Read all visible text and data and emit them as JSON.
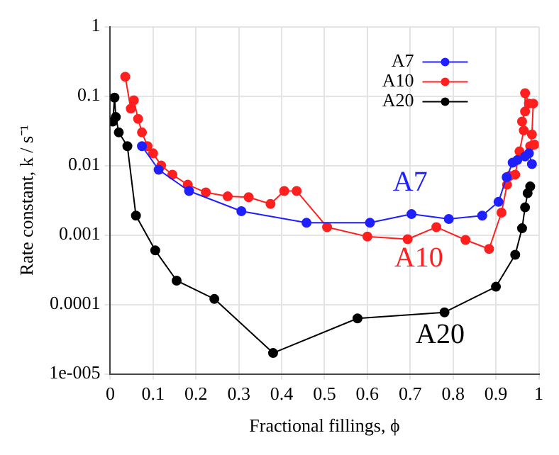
{
  "chart_data": {
    "type": "line",
    "xlabel": "Fractional fillings, ϕ",
    "ylabel": "Rate constant, k / s⁻¹",
    "log": "y",
    "grid": true,
    "legend": "top right",
    "marker": "circle",
    "line_style": "solid",
    "xlim": [
      0,
      1
    ],
    "xticks": [
      0,
      0.1,
      0.2,
      0.3,
      0.4,
      0.5,
      0.6,
      0.7,
      0.8,
      0.9,
      1
    ],
    "ylim": [
      1e-05,
      1
    ],
    "yticks": [
      {
        "value": 1e-05,
        "label": "1e-005"
      },
      0.0001,
      0.001,
      0.01,
      0.1,
      1
    ],
    "series": [
      {
        "name": "A7",
        "color": "#1f1fff",
        "x": [
          0.074,
          0.113,
          0.184,
          0.306,
          0.458,
          0.606,
          0.703,
          0.79,
          0.868,
          0.906,
          0.925,
          0.939,
          0.95,
          0.968,
          0.977,
          0.984
        ],
        "values": [
          0.019,
          0.0087,
          0.0043,
          0.0022,
          0.0015,
          0.0015,
          0.002,
          0.0017,
          0.0019,
          0.003,
          0.0068,
          0.011,
          0.012,
          0.0135,
          0.015,
          0.0105
        ]
      },
      {
        "name": "A10",
        "color": "#ff1f1f",
        "x": [
          0.035,
          0.048,
          0.055,
          0.065,
          0.074,
          0.087,
          0.1,
          0.119,
          0.145,
          0.181,
          0.223,
          0.274,
          0.323,
          0.374,
          0.406,
          0.435,
          0.506,
          0.6,
          0.694,
          0.761,
          0.829,
          0.884,
          0.913,
          0.926,
          0.932,
          0.945,
          0.955,
          0.965,
          0.961,
          0.968,
          0.968,
          0.977,
          0.987,
          0.984,
          0.98,
          0.99
        ],
        "values": [
          0.19,
          0.066,
          0.087,
          0.047,
          0.03,
          0.019,
          0.015,
          0.01,
          0.0074,
          0.0053,
          0.0041,
          0.0036,
          0.0035,
          0.0028,
          0.0043,
          0.0043,
          0.0013,
          0.00095,
          0.00087,
          0.0013,
          0.00085,
          0.00063,
          0.0021,
          0.0053,
          0.0071,
          0.0074,
          0.016,
          0.032,
          0.043,
          0.06,
          0.11,
          0.078,
          0.078,
          0.028,
          0.019,
          0.02
        ]
      },
      {
        "name": "A20",
        "color": "#000000",
        "x": [
          0.006,
          0.01,
          0.013,
          0.02,
          0.04,
          0.06,
          0.105,
          0.155,
          0.243,
          0.38,
          0.577,
          0.78,
          0.9,
          0.945,
          0.961,
          0.968,
          0.974,
          0.98
        ],
        "values": [
          0.043,
          0.095,
          0.05,
          0.03,
          0.019,
          0.0019,
          0.0006,
          0.00022,
          0.00012,
          2e-05,
          6.3e-05,
          7.7e-05,
          0.00018,
          0.00052,
          0.00125,
          0.0025,
          0.004,
          0.005
        ]
      }
    ],
    "annotations": [
      "A7",
      "A10",
      "A20"
    ]
  }
}
